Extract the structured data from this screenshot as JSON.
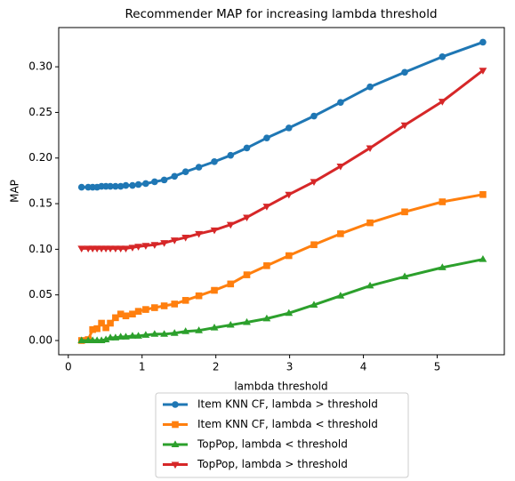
{
  "chart_data": {
    "type": "line",
    "title": "Recommender MAP for increasing lambda threshold",
    "xlabel": "lambda threshold",
    "ylabel": "MAP",
    "x": [
      0.18,
      0.27,
      0.33,
      0.39,
      0.45,
      0.51,
      0.57,
      0.64,
      0.71,
      0.78,
      0.87,
      0.95,
      1.05,
      1.17,
      1.3,
      1.44,
      1.59,
      1.77,
      1.98,
      2.2,
      2.42,
      2.69,
      2.99,
      3.33,
      3.69,
      4.09,
      4.56,
      5.07,
      5.62
    ],
    "series": [
      {
        "name": "Item KNN CF, lambda > threshold",
        "color": "#1f77b4",
        "marker": "o",
        "values": [
          0.168,
          0.168,
          0.168,
          0.168,
          0.169,
          0.169,
          0.169,
          0.169,
          0.169,
          0.17,
          0.17,
          0.171,
          0.172,
          0.174,
          0.176,
          0.18,
          0.185,
          0.19,
          0.196,
          0.203,
          0.211,
          0.222,
          0.233,
          0.246,
          0.261,
          0.278,
          0.294,
          0.311,
          0.327
        ]
      },
      {
        "name": "Item KNN CF, lambda < threshold",
        "color": "#ff7f0e",
        "marker": "s",
        "values": [
          0.0,
          0.001,
          0.012,
          0.013,
          0.019,
          0.014,
          0.019,
          0.025,
          0.029,
          0.027,
          0.029,
          0.032,
          0.034,
          0.036,
          0.038,
          0.04,
          0.044,
          0.049,
          0.055,
          0.062,
          0.072,
          0.082,
          0.093,
          0.105,
          0.117,
          0.129,
          0.141,
          0.152,
          0.16
        ]
      },
      {
        "name": "TopPop, lambda < threshold",
        "color": "#2ca02c",
        "marker": "^",
        "values": [
          0.0,
          0.0,
          0.0,
          0.0,
          0.0,
          0.001,
          0.003,
          0.003,
          0.004,
          0.004,
          0.005,
          0.005,
          0.006,
          0.007,
          0.007,
          0.008,
          0.01,
          0.011,
          0.014,
          0.017,
          0.02,
          0.024,
          0.03,
          0.039,
          0.049,
          0.06,
          0.07,
          0.08,
          0.089
        ]
      },
      {
        "name": "TopPop, lambda > threshold",
        "color": "#d62728",
        "marker": "v",
        "values": [
          0.101,
          0.101,
          0.101,
          0.101,
          0.101,
          0.101,
          0.101,
          0.101,
          0.101,
          0.101,
          0.102,
          0.103,
          0.104,
          0.105,
          0.107,
          0.11,
          0.113,
          0.117,
          0.121,
          0.127,
          0.135,
          0.147,
          0.16,
          0.174,
          0.191,
          0.211,
          0.236,
          0.262,
          0.296
        ]
      }
    ],
    "xlim": [
      -0.13,
      5.91
    ],
    "ylim": [
      -0.0156,
      0.343
    ],
    "xticks": [
      0,
      1,
      2,
      3,
      4,
      5
    ],
    "yticks": [
      {
        "value": 0,
        "label": "0.00"
      },
      {
        "value": 0.05,
        "label": "0.05"
      },
      {
        "value": 0.1,
        "label": "0.10"
      },
      {
        "value": 0.15,
        "label": "0.15"
      },
      {
        "value": 0.2,
        "label": "0.20"
      },
      {
        "value": 0.25,
        "label": "0.25"
      },
      {
        "value": 0.3,
        "label": "0.30"
      }
    ],
    "grid": false,
    "legend": "below"
  }
}
